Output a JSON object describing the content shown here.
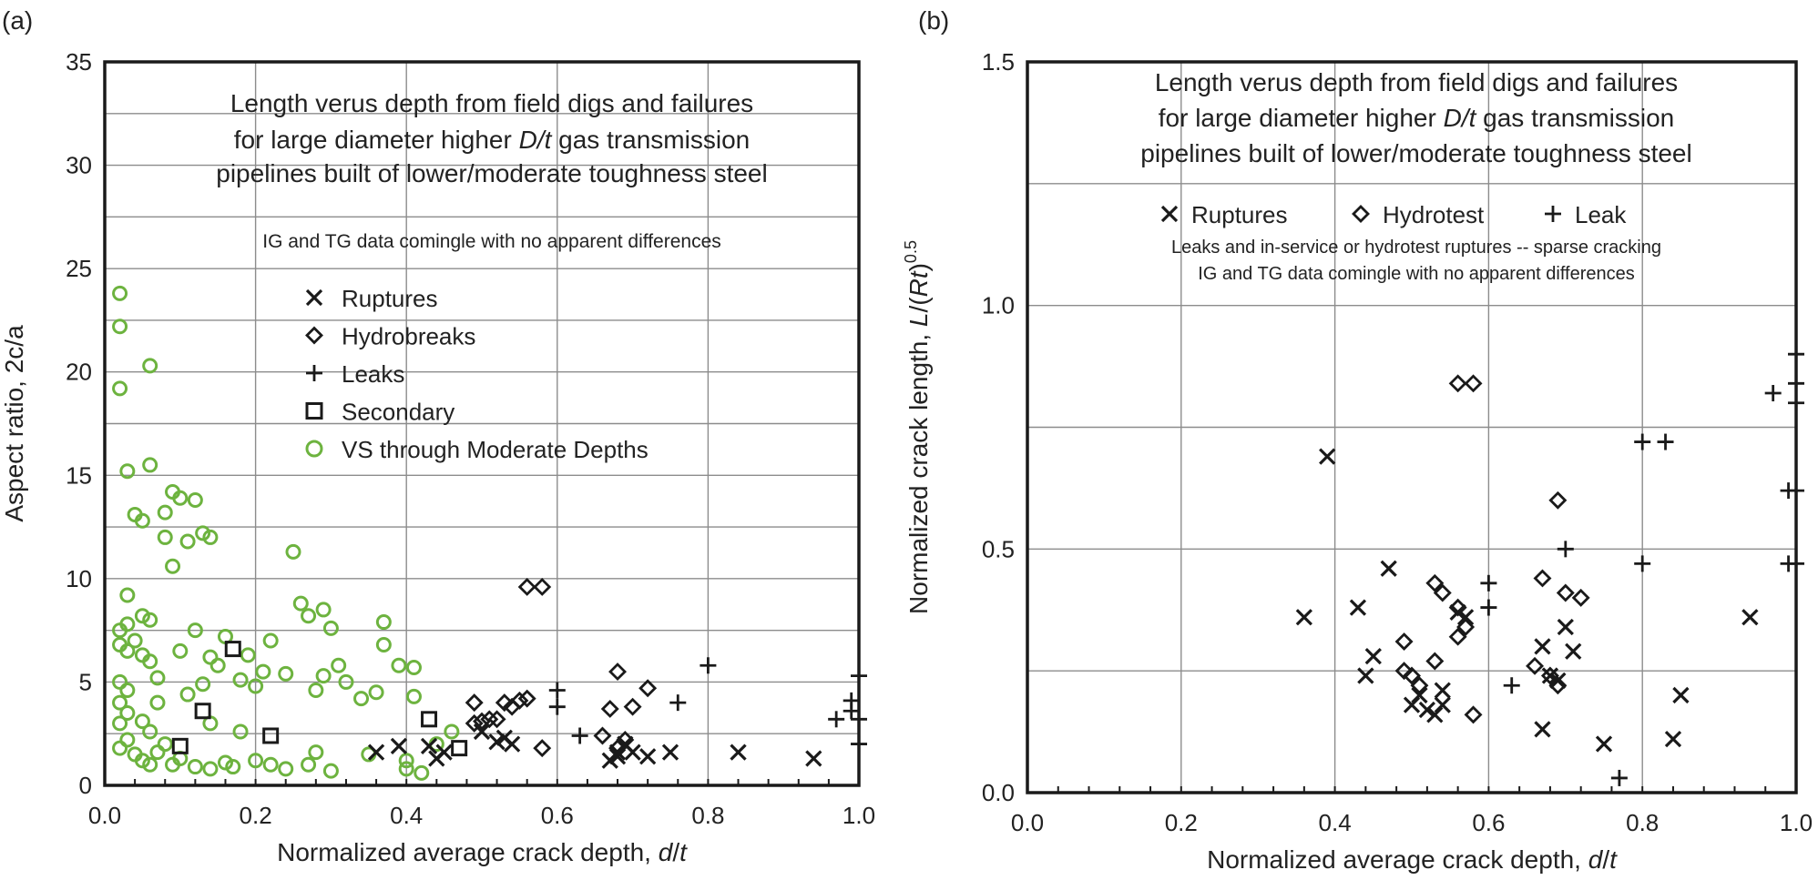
{
  "chart_data": [
    {
      "type": "scatter",
      "panel_label": "(a)",
      "xlabel": "Normalized average crack depth, d/t",
      "xlabel_parts": [
        "Normalized average crack depth, ",
        "d",
        "/",
        "t"
      ],
      "ylabel": "Aspect ratio, 2c/a",
      "xlim": [
        0,
        1.0
      ],
      "ylim": [
        0,
        35
      ],
      "xticks": [
        "0.0",
        "0.2",
        "0.4",
        "0.6",
        "0.8",
        "1.0"
      ],
      "yticks": [
        "0",
        "5",
        "10",
        "15",
        "20",
        "25",
        "30",
        "35"
      ],
      "grid": true,
      "title_lines": [
        [
          "Length verus depth from field digs and failures"
        ],
        [
          "for large diameter higher ",
          {
            "i": "D/t"
          },
          " gas transmission"
        ],
        [
          "pipelines built of lower/moderate toughness steel"
        ]
      ],
      "note": "IG and TG data comingle with no apparent differences",
      "legend": [
        "Ruptures",
        "Hydrobreaks",
        "Leaks",
        "Secondary",
        "VS through Moderate Depths"
      ],
      "colors": {
        "green": "#6db33f",
        "black": "#1a1a1a"
      },
      "series": [
        {
          "name": "Ruptures",
          "marker": "x",
          "points": [
            [
              0.36,
              1.6
            ],
            [
              0.39,
              1.9
            ],
            [
              0.43,
              1.9
            ],
            [
              0.44,
              1.3
            ],
            [
              0.45,
              1.6
            ],
            [
              0.5,
              2.6
            ],
            [
              0.52,
              2.1
            ],
            [
              0.53,
              2.3
            ],
            [
              0.54,
              2.0
            ],
            [
              0.67,
              1.2
            ],
            [
              0.68,
              1.6
            ],
            [
              0.68,
              1.4
            ],
            [
              0.69,
              2.0
            ],
            [
              0.7,
              1.6
            ],
            [
              0.72,
              1.4
            ],
            [
              0.75,
              1.6
            ],
            [
              0.84,
              1.6
            ],
            [
              0.94,
              1.3
            ]
          ]
        },
        {
          "name": "Hydrobreaks",
          "marker": "diamond",
          "points": [
            [
              0.49,
              3.0
            ],
            [
              0.5,
              3.1
            ],
            [
              0.51,
              3.2
            ],
            [
              0.49,
              4.0
            ],
            [
              0.52,
              3.2
            ],
            [
              0.53,
              4.0
            ],
            [
              0.54,
              3.8
            ],
            [
              0.55,
              4.1
            ],
            [
              0.56,
              4.2
            ],
            [
              0.56,
              9.6
            ],
            [
              0.58,
              9.6
            ],
            [
              0.58,
              1.8
            ],
            [
              0.66,
              2.4
            ],
            [
              0.67,
              3.7
            ],
            [
              0.68,
              1.8
            ],
            [
              0.68,
              5.5
            ],
            [
              0.69,
              2.2
            ],
            [
              0.7,
              3.8
            ],
            [
              0.72,
              4.7
            ]
          ]
        },
        {
          "name": "Leaks",
          "marker": "plus",
          "points": [
            [
              0.6,
              4.6
            ],
            [
              0.6,
              3.8
            ],
            [
              0.63,
              2.4
            ],
            [
              0.76,
              4.0
            ],
            [
              0.8,
              5.8
            ],
            [
              0.97,
              3.2
            ],
            [
              0.99,
              4.1
            ],
            [
              0.99,
              3.6
            ],
            [
              1.0,
              5.3
            ],
            [
              1.0,
              3.2
            ],
            [
              1.0,
              2.0
            ]
          ]
        },
        {
          "name": "Secondary",
          "marker": "square",
          "points": [
            [
              0.1,
              1.9
            ],
            [
              0.13,
              3.6
            ],
            [
              0.17,
              6.6
            ],
            [
              0.22,
              2.4
            ],
            [
              0.43,
              3.2
            ],
            [
              0.47,
              1.8
            ]
          ]
        },
        {
          "name": "VS through Moderate Depths",
          "marker": "circle",
          "points": [
            [
              0.02,
              23.8
            ],
            [
              0.02,
              22.2
            ],
            [
              0.02,
              19.2
            ],
            [
              0.06,
              20.3
            ],
            [
              0.03,
              15.2
            ],
            [
              0.06,
              15.5
            ],
            [
              0.04,
              13.1
            ],
            [
              0.05,
              12.8
            ],
            [
              0.08,
              13.2
            ],
            [
              0.09,
              14.2
            ],
            [
              0.1,
              13.9
            ],
            [
              0.12,
              13.8
            ],
            [
              0.08,
              12.0
            ],
            [
              0.11,
              11.8
            ],
            [
              0.13,
              12.2
            ],
            [
              0.14,
              12.0
            ],
            [
              0.09,
              10.6
            ],
            [
              0.25,
              11.3
            ],
            [
              0.03,
              9.2
            ],
            [
              0.02,
              7.5
            ],
            [
              0.03,
              7.8
            ],
            [
              0.05,
              8.2
            ],
            [
              0.06,
              8.0
            ],
            [
              0.04,
              7.0
            ],
            [
              0.02,
              6.8
            ],
            [
              0.03,
              6.5
            ],
            [
              0.05,
              6.3
            ],
            [
              0.06,
              6.0
            ],
            [
              0.07,
              5.2
            ],
            [
              0.02,
              5.0
            ],
            [
              0.03,
              4.6
            ],
            [
              0.02,
              4.0
            ],
            [
              0.03,
              3.5
            ],
            [
              0.02,
              3.0
            ],
            [
              0.03,
              2.2
            ],
            [
              0.02,
              1.8
            ],
            [
              0.04,
              1.5
            ],
            [
              0.05,
              1.2
            ],
            [
              0.06,
              1.0
            ],
            [
              0.07,
              1.6
            ],
            [
              0.08,
              2.0
            ],
            [
              0.09,
              1.0
            ],
            [
              0.1,
              1.3
            ],
            [
              0.12,
              0.9
            ],
            [
              0.14,
              0.8
            ],
            [
              0.16,
              1.1
            ],
            [
              0.17,
              0.9
            ],
            [
              0.2,
              1.2
            ],
            [
              0.22,
              1.0
            ],
            [
              0.24,
              0.8
            ],
            [
              0.27,
              1.0
            ],
            [
              0.3,
              0.7
            ],
            [
              0.35,
              1.5
            ],
            [
              0.4,
              0.8
            ],
            [
              0.42,
              0.6
            ],
            [
              0.1,
              6.5
            ],
            [
              0.12,
              7.5
            ],
            [
              0.14,
              6.2
            ],
            [
              0.15,
              5.8
            ],
            [
              0.16,
              7.2
            ],
            [
              0.18,
              5.1
            ],
            [
              0.19,
              6.3
            ],
            [
              0.21,
              5.5
            ],
            [
              0.22,
              7.0
            ],
            [
              0.24,
              5.4
            ],
            [
              0.26,
              8.8
            ],
            [
              0.27,
              8.2
            ],
            [
              0.29,
              8.5
            ],
            [
              0.3,
              7.6
            ],
            [
              0.29,
              5.3
            ],
            [
              0.31,
              5.8
            ],
            [
              0.32,
              5.0
            ],
            [
              0.34,
              4.2
            ],
            [
              0.36,
              4.5
            ],
            [
              0.37,
              6.8
            ],
            [
              0.37,
              7.9
            ],
            [
              0.39,
              5.8
            ],
            [
              0.41,
              5.7
            ],
            [
              0.41,
              4.3
            ],
            [
              0.28,
              4.6
            ],
            [
              0.2,
              4.8
            ],
            [
              0.13,
              4.9
            ],
            [
              0.11,
              4.4
            ],
            [
              0.07,
              4.0
            ],
            [
              0.05,
              3.1
            ],
            [
              0.14,
              3.0
            ],
            [
              0.18,
              2.6
            ],
            [
              0.06,
              2.6
            ],
            [
              0.28,
              1.6
            ],
            [
              0.44,
              2.0
            ],
            [
              0.4,
              1.2
            ],
            [
              0.46,
              2.6
            ]
          ]
        }
      ]
    },
    {
      "type": "scatter",
      "panel_label": "(b)",
      "xlabel": "Normalized average crack depth, d/t",
      "xlabel_parts": [
        "Normalized average crack depth, ",
        "d",
        "/",
        "t"
      ],
      "ylabel": "Normalized crack length, L/(Rt)^0.5",
      "xlim": [
        0,
        1.0
      ],
      "ylim": [
        0,
        1.5
      ],
      "xticks": [
        "0.0",
        "0.2",
        "0.4",
        "0.6",
        "0.8",
        "1.0"
      ],
      "yticks": [
        "0.0",
        "0.5",
        "1.0",
        "1.5"
      ],
      "grid": true,
      "title_lines": [
        [
          "Length verus depth from field digs and failures"
        ],
        [
          "for large diameter higher ",
          {
            "i": "D/t"
          },
          " gas transmission"
        ],
        [
          "pipelines built of lower/moderate toughness steel"
        ]
      ],
      "notes": [
        "Leaks and in-service or hydrotest ruptures -- sparse cracking",
        "IG and TG data comingle with no apparent differences"
      ],
      "legend": [
        "Ruptures",
        "Hydrotest",
        "Leak"
      ],
      "series": [
        {
          "name": "Ruptures",
          "marker": "x",
          "points": [
            [
              0.36,
              0.36
            ],
            [
              0.39,
              0.69
            ],
            [
              0.43,
              0.38
            ],
            [
              0.44,
              0.24
            ],
            [
              0.45,
              0.28
            ],
            [
              0.47,
              0.46
            ],
            [
              0.5,
              0.18
            ],
            [
              0.51,
              0.2
            ],
            [
              0.52,
              0.17
            ],
            [
              0.53,
              0.16
            ],
            [
              0.54,
              0.21
            ],
            [
              0.54,
              0.18
            ],
            [
              0.56,
              0.37
            ],
            [
              0.57,
              0.36
            ],
            [
              0.67,
              0.13
            ],
            [
              0.67,
              0.3
            ],
            [
              0.68,
              0.24
            ],
            [
              0.69,
              0.23
            ],
            [
              0.7,
              0.34
            ],
            [
              0.71,
              0.29
            ],
            [
              0.75,
              0.1
            ],
            [
              0.84,
              0.11
            ],
            [
              0.85,
              0.2
            ],
            [
              0.94,
              0.36
            ]
          ]
        },
        {
          "name": "Hydrotest",
          "marker": "diamond",
          "points": [
            [
              0.49,
              0.31
            ],
            [
              0.49,
              0.25
            ],
            [
              0.5,
              0.24
            ],
            [
              0.51,
              0.22
            ],
            [
              0.53,
              0.27
            ],
            [
              0.53,
              0.43
            ],
            [
              0.54,
              0.41
            ],
            [
              0.56,
              0.38
            ],
            [
              0.56,
              0.32
            ],
            [
              0.57,
              0.34
            ],
            [
              0.56,
              0.84
            ],
            [
              0.58,
              0.84
            ],
            [
              0.58,
              0.16
            ],
            [
              0.66,
              0.26
            ],
            [
              0.67,
              0.44
            ],
            [
              0.68,
              0.24
            ],
            [
              0.69,
              0.22
            ],
            [
              0.69,
              0.6
            ],
            [
              0.7,
              0.41
            ],
            [
              0.72,
              0.4
            ]
          ]
        },
        {
          "name": "Leak",
          "marker": "plus",
          "points": [
            [
              0.6,
              0.43
            ],
            [
              0.6,
              0.38
            ],
            [
              0.63,
              0.22
            ],
            [
              0.7,
              0.5
            ],
            [
              0.77,
              0.03
            ],
            [
              0.8,
              0.72
            ],
            [
              0.8,
              0.47
            ],
            [
              0.83,
              0.72
            ],
            [
              0.97,
              0.82
            ],
            [
              0.99,
              0.62
            ],
            [
              1.0,
              0.9
            ],
            [
              1.0,
              0.84
            ],
            [
              1.0,
              0.8
            ],
            [
              1.0,
              0.62
            ],
            [
              1.0,
              0.47
            ],
            [
              0.99,
              0.47
            ]
          ]
        }
      ]
    }
  ]
}
